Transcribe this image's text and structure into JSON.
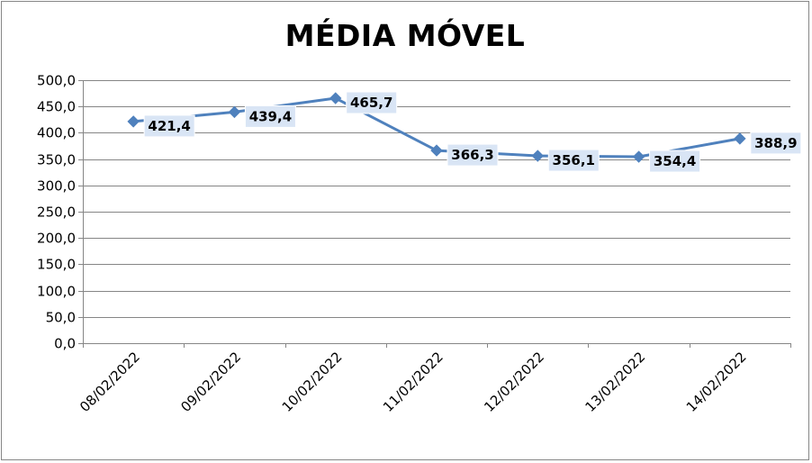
{
  "chart_data": {
    "type": "line",
    "title": "MÉDIA MÓVEL",
    "categories": [
      "08/02/2022",
      "09/02/2022",
      "10/02/2022",
      "11/02/2022",
      "12/02/2022",
      "13/02/2022",
      "14/02/2022"
    ],
    "series": [
      {
        "values": [
          421.4,
          439.4,
          465.7,
          366.3,
          356.1,
          354.4,
          388.9
        ],
        "labels": [
          "421,4",
          "439,4",
          "465,7",
          "366,3",
          "356,1",
          "354,4",
          "388,9"
        ],
        "color": "#4F81BD",
        "marker": "diamond"
      }
    ],
    "ylim": [
      0,
      500
    ],
    "yticks": [
      "0,0",
      "50,0",
      "100,0",
      "150,0",
      "200,0",
      "250,0",
      "300,0",
      "350,0",
      "400,0",
      "450,0",
      "500,0"
    ],
    "xlabel": "",
    "ylabel": "",
    "grid": true,
    "legend": "none",
    "colors": {
      "line": "#4F81BD",
      "gridline": "#868686",
      "label_fill": "#D9E5F5"
    }
  }
}
